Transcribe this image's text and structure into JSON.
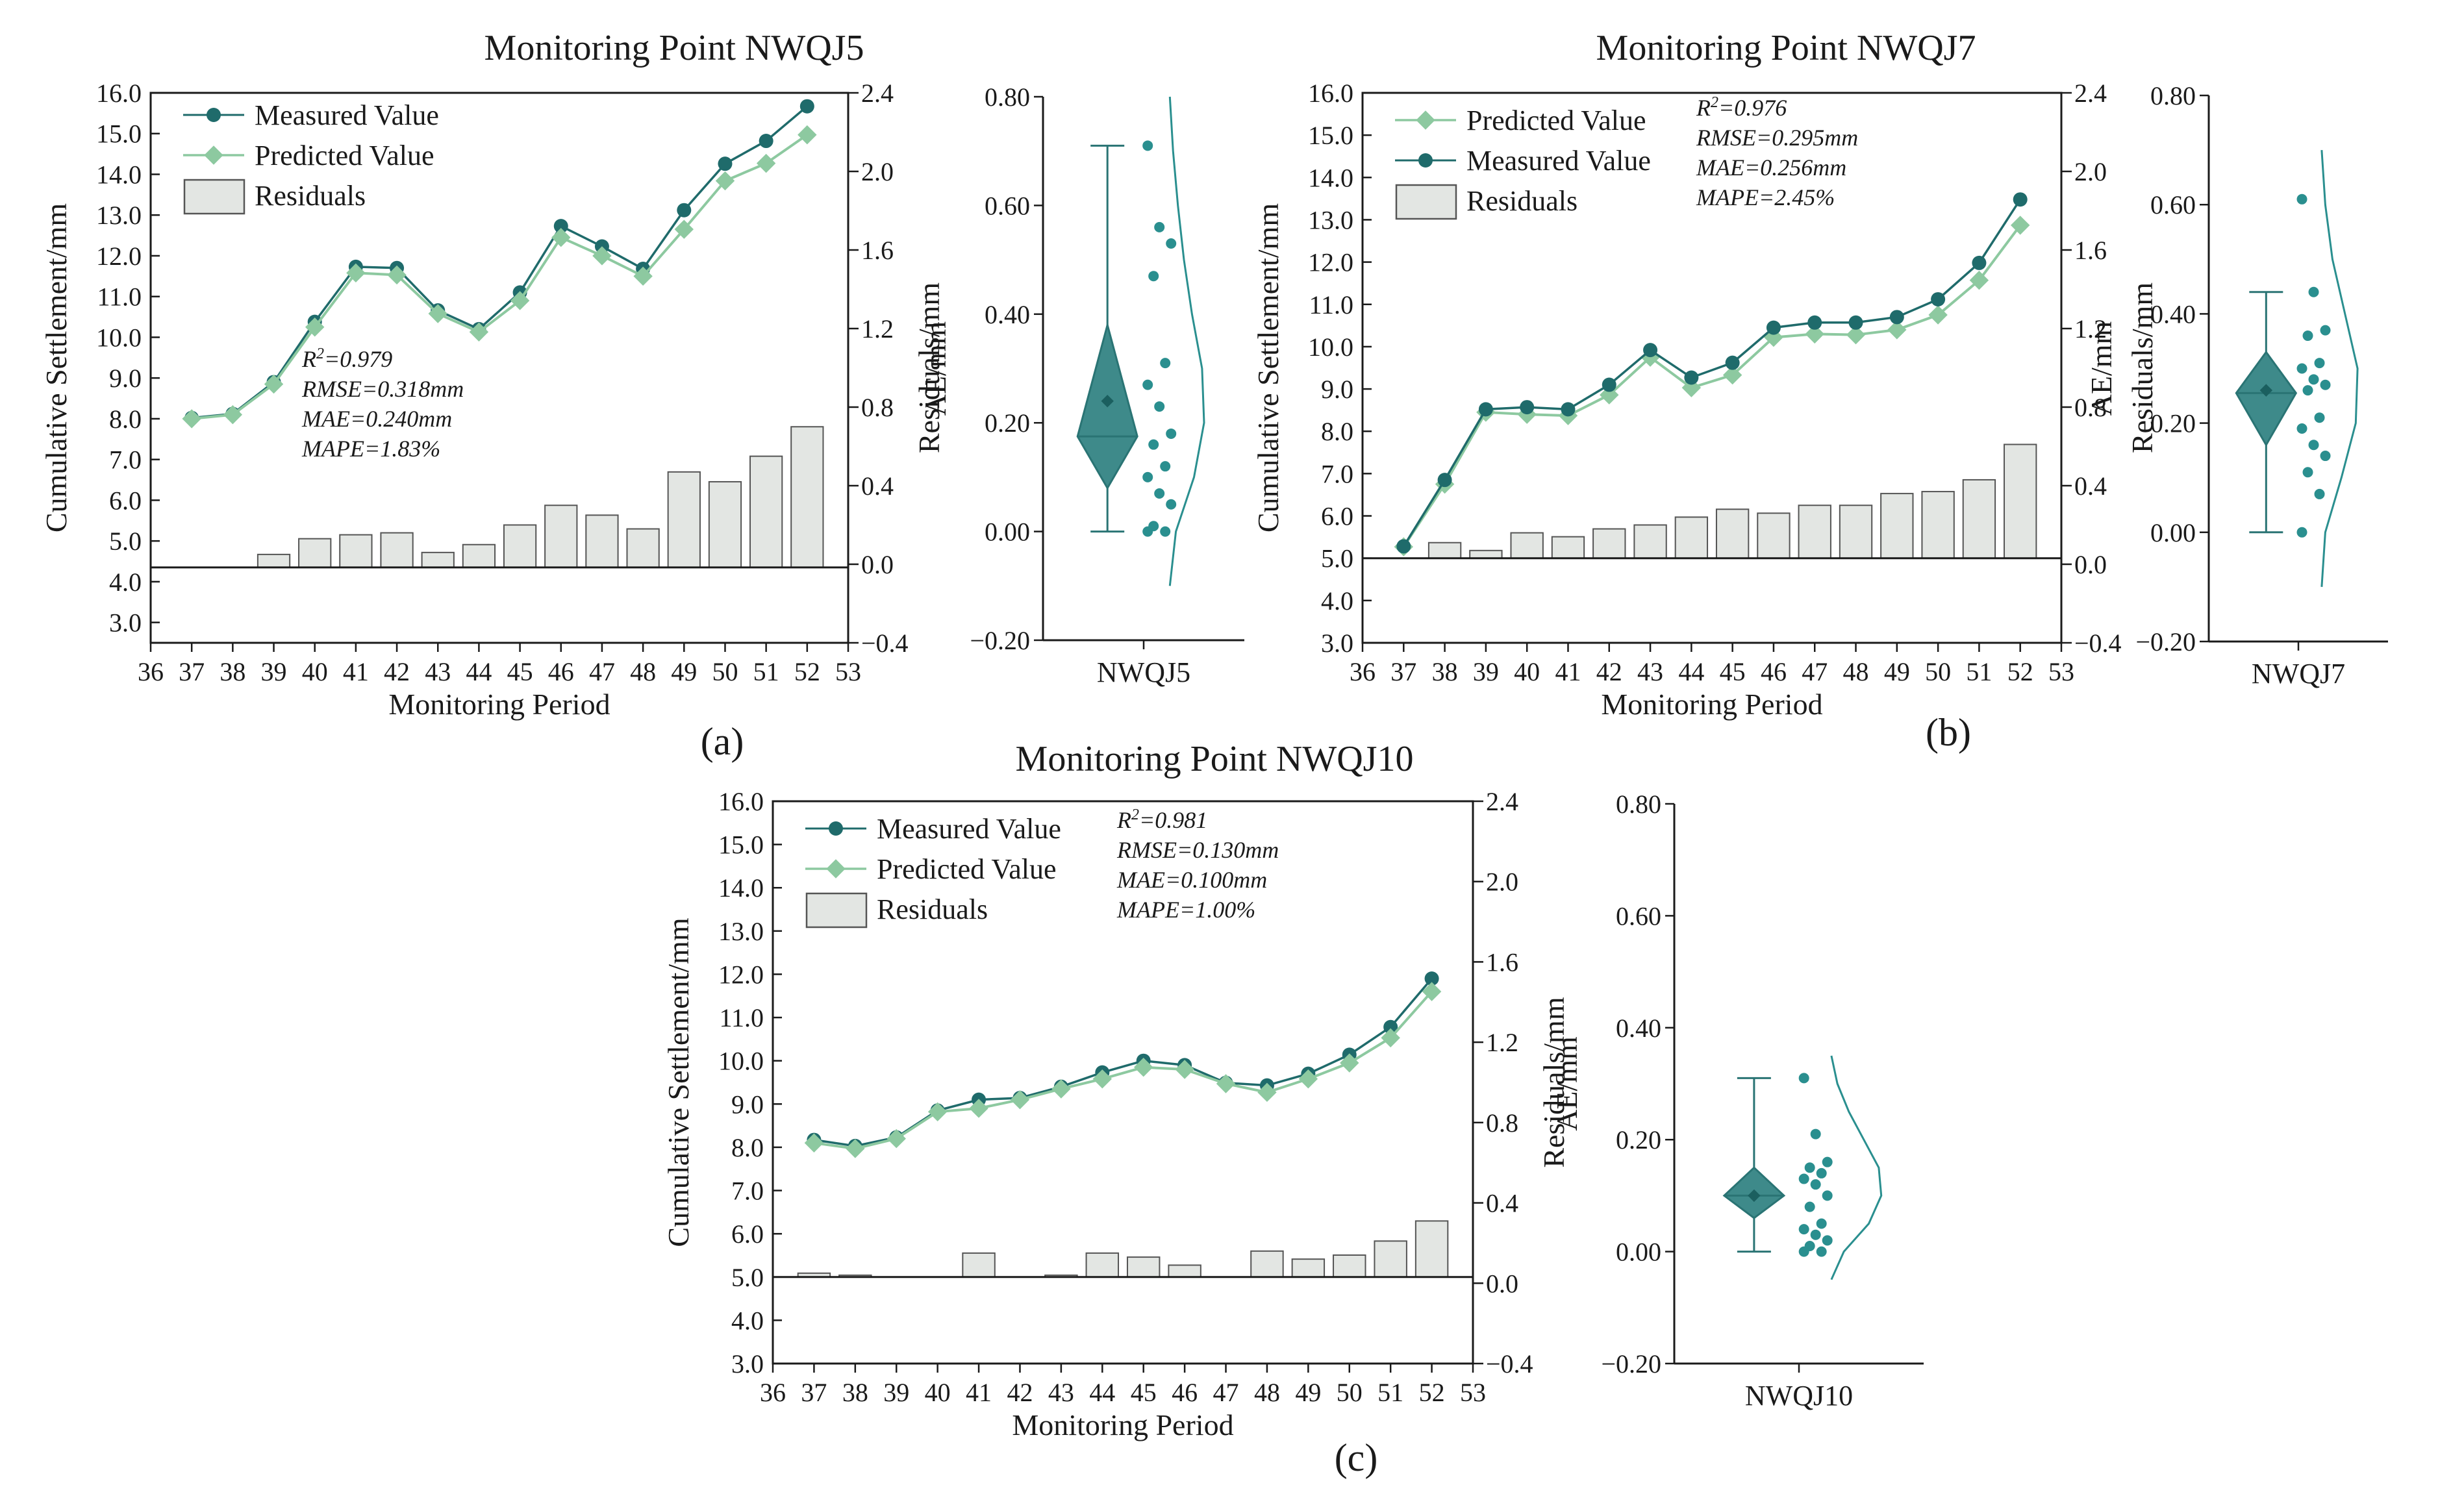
{
  "figure_labels": [
    "(a)",
    "(b)",
    "(c)"
  ],
  "colors": {
    "measured": "#1f6b6b",
    "predicted": "#8dc9a0",
    "residual_fill": "#e3e6e3",
    "residual_edge": "#555555",
    "box_fill": "#3e8a8a",
    "box_edge": "#2a7474",
    "dots": "#2a8f8f",
    "axis": "#1a1a1a"
  },
  "chart_data": [
    {
      "type": "line",
      "panel": "a",
      "title": "Monitoring Point NWQJ5",
      "xlabel": "Monitoring Period",
      "ylabel": "Cumulative Settlement/mm",
      "y2label": "Residuals/mm",
      "xlim": [
        36,
        53
      ],
      "ylim": [
        2.5,
        16.0
      ],
      "y2lim": [
        -0.4,
        2.4
      ],
      "baseline": 4.35,
      "x_ticks": [
        36,
        37,
        38,
        39,
        40,
        41,
        42,
        43,
        44,
        45,
        46,
        47,
        48,
        49,
        50,
        51,
        52,
        53
      ],
      "y_ticks": [
        "3.0",
        "4.0",
        "5.0",
        "6.0",
        "7.0",
        "8.0",
        "9.0",
        "10.0",
        "11.0",
        "12.0",
        "13.0",
        "14.0",
        "15.0",
        "16.0"
      ],
      "y2_ticks": [
        "−0.4",
        "0.0",
        "0.4",
        "0.8",
        "1.2",
        "1.6",
        "2.0",
        "2.4"
      ],
      "legend": [
        "Measured Value",
        "Predicted Value",
        "Residuals"
      ],
      "legend_position": "top-left",
      "x": [
        37,
        38,
        39,
        40,
        41,
        42,
        43,
        44,
        45,
        46,
        47,
        48,
        49,
        50,
        51,
        52
      ],
      "series": [
        {
          "name": "Measured Value",
          "values": [
            8.02,
            8.12,
            8.9,
            10.38,
            11.73,
            11.7,
            10.66,
            10.2,
            11.1,
            12.73,
            12.23,
            11.68,
            13.12,
            14.26,
            14.82,
            15.67
          ]
        },
        {
          "name": "Predicted Value",
          "values": [
            8.0,
            8.1,
            8.85,
            10.25,
            11.58,
            11.53,
            10.58,
            10.13,
            10.9,
            12.45,
            12.0,
            11.5,
            12.65,
            13.84,
            14.27,
            14.97
          ]
        }
      ],
      "residuals": [
        0.0,
        0.0,
        0.05,
        0.13,
        0.15,
        0.16,
        0.06,
        0.1,
        0.2,
        0.3,
        0.25,
        0.18,
        0.47,
        0.42,
        0.55,
        0.7
      ],
      "stats": {
        "r2": "R2=0.979",
        "rmse": "RMSE=0.318mm",
        "mae": "MAE=0.240mm",
        "mape": "MAPE=1.83%"
      }
    },
    {
      "type": "line",
      "panel": "b",
      "title": "Monitoring Point NWQJ7",
      "xlabel": "Monitoring Period",
      "ylabel": "Cumulative Settlement/mm",
      "y2label": "Residuals/mm",
      "xlim": [
        36,
        53
      ],
      "ylim": [
        3.0,
        16.0
      ],
      "y2lim": [
        -0.4,
        2.4
      ],
      "baseline": 5.0,
      "x_ticks": [
        36,
        37,
        38,
        39,
        40,
        41,
        42,
        43,
        44,
        45,
        46,
        47,
        48,
        49,
        50,
        51,
        52,
        53
      ],
      "y_ticks": [
        "3.0",
        "4.0",
        "5.0",
        "6.0",
        "7.0",
        "8.0",
        "9.0",
        "10.0",
        "11.0",
        "12.0",
        "13.0",
        "14.0",
        "15.0",
        "16.0"
      ],
      "y2_ticks": [
        "−0.4",
        "0.0",
        "0.4",
        "0.8",
        "1.2",
        "1.6",
        "2.0",
        "2.4"
      ],
      "legend": [
        "Predicted Value",
        "Measured Value",
        "Residuals"
      ],
      "legend_position": "top-left",
      "x": [
        37,
        38,
        39,
        40,
        41,
        42,
        43,
        44,
        45,
        46,
        47,
        48,
        49,
        50,
        51,
        52
      ],
      "series": [
        {
          "name": "Measured Value",
          "values": [
            5.28,
            6.85,
            8.52,
            8.57,
            8.52,
            9.1,
            9.92,
            9.27,
            9.62,
            10.45,
            10.57,
            10.57,
            10.7,
            11.12,
            11.98,
            13.48
          ]
        },
        {
          "name": "Predicted Value",
          "values": [
            5.27,
            6.75,
            8.45,
            8.4,
            8.37,
            8.86,
            9.75,
            9.03,
            9.33,
            10.22,
            10.3,
            10.28,
            10.4,
            10.75,
            11.57,
            12.87
          ]
        }
      ],
      "residuals": [
        0.0,
        0.11,
        0.07,
        0.16,
        0.14,
        0.18,
        0.2,
        0.24,
        0.28,
        0.26,
        0.3,
        0.3,
        0.36,
        0.37,
        0.43,
        0.61
      ],
      "stats": {
        "r2": "R2=0.976",
        "rmse": "RMSE=0.295mm",
        "mae": "MAE=0.256mm",
        "mape": "MAPE=2.45%"
      }
    },
    {
      "type": "line",
      "panel": "c",
      "title": "Monitoring Point NWQJ10",
      "xlabel": "Monitoring Period",
      "ylabel": "Cumulative Settlement/mm",
      "y2label": "Residuals/mm",
      "xlim": [
        36,
        53
      ],
      "ylim": [
        3.0,
        16.0
      ],
      "y2lim": [
        -0.4,
        2.4
      ],
      "baseline": 5.0,
      "x_ticks": [
        36,
        37,
        38,
        39,
        40,
        41,
        42,
        43,
        44,
        45,
        46,
        47,
        48,
        49,
        50,
        51,
        52,
        53
      ],
      "y_ticks": [
        "3.0",
        "4.0",
        "5.0",
        "6.0",
        "7.0",
        "8.0",
        "9.0",
        "10.0",
        "11.0",
        "12.0",
        "13.0",
        "14.0",
        "15.0",
        "16.0"
      ],
      "y2_ticks": [
        "−0.4",
        "0.0",
        "0.4",
        "0.8",
        "1.2",
        "1.6",
        "2.0",
        "2.4"
      ],
      "legend": [
        "Measured Value",
        "Predicted Value",
        "Residuals"
      ],
      "legend_position": "top-left",
      "x": [
        37,
        38,
        39,
        40,
        41,
        42,
        43,
        44,
        45,
        46,
        47,
        48,
        49,
        50,
        51,
        52
      ],
      "series": [
        {
          "name": "Measured Value",
          "values": [
            8.17,
            8.03,
            8.23,
            8.85,
            9.1,
            9.14,
            9.4,
            9.73,
            10.0,
            9.9,
            9.49,
            9.43,
            9.7,
            10.14,
            10.78,
            11.9
          ]
        },
        {
          "name": "Predicted Value",
          "values": [
            8.1,
            7.97,
            8.2,
            8.82,
            8.9,
            9.1,
            9.35,
            9.58,
            9.85,
            9.8,
            9.47,
            9.27,
            9.58,
            9.95,
            10.53,
            11.6
          ]
        }
      ],
      "residuals": [
        0.05,
        0.04,
        0.02,
        0.01,
        0.15,
        0.0,
        0.04,
        0.15,
        0.13,
        0.09,
        0.0,
        0.16,
        0.12,
        0.14,
        0.21,
        0.31
      ],
      "stats": {
        "r2": "R2=0.981",
        "rmse": "RMSE=0.130mm",
        "mae": "MAE=0.100mm",
        "mape": "MAPE=1.00%"
      }
    },
    {
      "type": "box",
      "panel": "a-box",
      "category": "NWQJ5",
      "ylabel": "AE/mm",
      "ylim": [
        -0.2,
        0.8
      ],
      "y_ticks": [
        "−0.20",
        "0.00",
        "0.20",
        "0.40",
        "0.60",
        "0.80"
      ],
      "box": {
        "min": 0.0,
        "q1": 0.08,
        "median": 0.175,
        "q3": 0.38,
        "max": 0.71,
        "mean": 0.24
      },
      "points": [
        0.71,
        0.56,
        0.53,
        0.47,
        0.31,
        0.27,
        0.23,
        0.18,
        0.16,
        0.12,
        0.1,
        0.07,
        0.05,
        0.01,
        0.0,
        0.0
      ],
      "density": [
        [
          -0.1,
          0.0
        ],
        [
          0.0,
          0.15
        ],
        [
          0.1,
          0.6
        ],
        [
          0.2,
          0.85
        ],
        [
          0.3,
          0.8
        ],
        [
          0.4,
          0.55
        ],
        [
          0.5,
          0.35
        ],
        [
          0.6,
          0.2
        ],
        [
          0.7,
          0.08
        ],
        [
          0.8,
          0.0
        ]
      ]
    },
    {
      "type": "box",
      "panel": "b-box",
      "category": "NWQJ7",
      "ylabel": "AE/mm",
      "ylim": [
        -0.2,
        0.8
      ],
      "y_ticks": [
        "−0.20",
        "0.00",
        "0.20",
        "0.40",
        "0.60",
        "0.80"
      ],
      "box": {
        "min": 0.0,
        "q1": 0.16,
        "median": 0.255,
        "q3": 0.33,
        "max": 0.44,
        "mean": 0.26
      },
      "points": [
        0.61,
        0.44,
        0.37,
        0.36,
        0.31,
        0.3,
        0.28,
        0.27,
        0.26,
        0.21,
        0.19,
        0.16,
        0.14,
        0.11,
        0.07,
        0.0
      ],
      "density": [
        [
          -0.1,
          0.0
        ],
        [
          0.0,
          0.1
        ],
        [
          0.1,
          0.55
        ],
        [
          0.2,
          0.95
        ],
        [
          0.3,
          1.0
        ],
        [
          0.4,
          0.65
        ],
        [
          0.5,
          0.3
        ],
        [
          0.6,
          0.1
        ],
        [
          0.7,
          0.0
        ]
      ]
    },
    {
      "type": "box",
      "panel": "c-box",
      "category": "NWQJ10",
      "ylabel": "AE/mm",
      "ylim": [
        -0.2,
        0.8
      ],
      "y_ticks": [
        "−0.20",
        "0.00",
        "0.20",
        "0.40",
        "0.60",
        "0.80"
      ],
      "box": {
        "min": 0.0,
        "q1": 0.06,
        "median": 0.1,
        "q3": 0.15,
        "max": 0.31,
        "mean": 0.1
      },
      "points": [
        0.31,
        0.21,
        0.16,
        0.15,
        0.14,
        0.13,
        0.12,
        0.1,
        0.08,
        0.05,
        0.04,
        0.03,
        0.02,
        0.01,
        0.0,
        0.0
      ],
      "density": [
        [
          -0.05,
          0.0
        ],
        [
          0.0,
          0.25
        ],
        [
          0.05,
          0.75
        ],
        [
          0.1,
          1.0
        ],
        [
          0.15,
          0.95
        ],
        [
          0.2,
          0.65
        ],
        [
          0.25,
          0.35
        ],
        [
          0.3,
          0.12
        ],
        [
          0.35,
          0.0
        ]
      ]
    }
  ]
}
